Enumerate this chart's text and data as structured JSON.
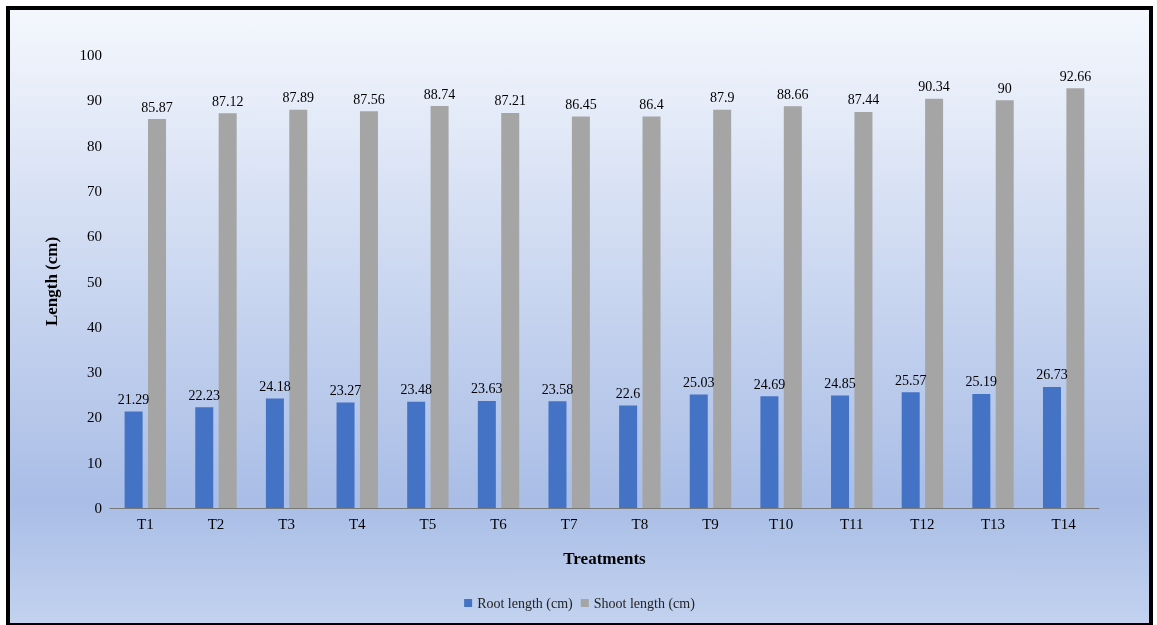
{
  "chart_data": {
    "type": "bar",
    "xlabel": "Treatments",
    "ylabel": "Length (cm)",
    "categories": [
      "T1",
      "T2",
      "T3",
      "T4",
      "T5",
      "T6",
      "T7",
      "T8",
      "T9",
      "T10",
      "T11",
      "T12",
      "T13",
      "T14"
    ],
    "series": [
      {
        "name": "Root length (cm)",
        "color": "#4472c4",
        "values": [
          21.29,
          22.23,
          24.18,
          23.27,
          23.48,
          23.63,
          23.58,
          22.6,
          25.03,
          24.69,
          24.85,
          25.57,
          25.19,
          26.73
        ]
      },
      {
        "name": "Shoot length (cm)",
        "color": "#a5a5a5",
        "values": [
          85.87,
          87.12,
          87.89,
          87.56,
          88.74,
          87.21,
          86.45,
          86.4,
          87.9,
          88.66,
          87.44,
          90.34,
          90,
          92.66
        ]
      }
    ],
    "ylim": [
      0,
      100
    ],
    "yticks": [
      0,
      10,
      20,
      30,
      40,
      50,
      60,
      70,
      80,
      90,
      100
    ],
    "grid": false,
    "legend": "bottom",
    "data_labels": true
  }
}
